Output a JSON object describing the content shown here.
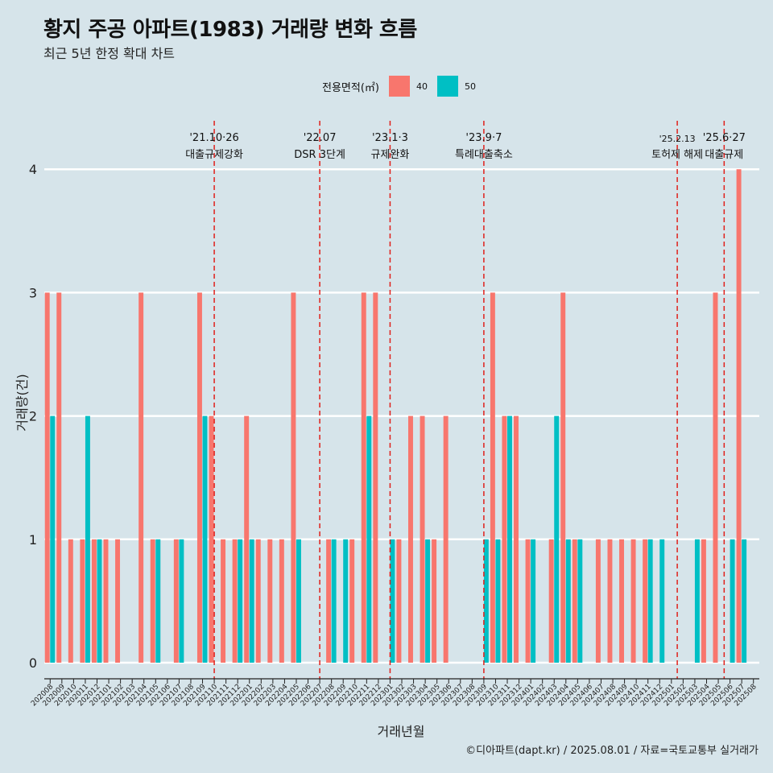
{
  "title": "황지 주공 아파트(1983) 거래량 변화 흐름",
  "subtitle": "최근 5년 한정 확대 차트",
  "caption": "©디아파트(dapt.kr) / 2025.08.01 / 자료=국토교통부 실거래가",
  "colors": {
    "s40": "#f8766d",
    "s50": "#00bfc4",
    "background": "#d6e4ea",
    "grid": "#ffffff",
    "event_line": "#e0201b"
  },
  "chart_data": {
    "type": "bar",
    "xlabel": "거래년월",
    "ylabel": "거래량(건)",
    "ylim": [
      0,
      4
    ],
    "yticks": [
      0,
      1,
      2,
      3,
      4
    ],
    "legend_title": "전용면적(㎡)",
    "legend_position": "top",
    "grid": true,
    "categories": [
      "202008",
      "202009",
      "202010",
      "202011",
      "202012",
      "202101",
      "202102",
      "202103",
      "202104",
      "202105",
      "202106",
      "202107",
      "202108",
      "202109",
      "202110",
      "202111",
      "202112",
      "202201",
      "202202",
      "202203",
      "202204",
      "202205",
      "202206",
      "202207",
      "202208",
      "202209",
      "202210",
      "202211",
      "202212",
      "202301",
      "202302",
      "202303",
      "202304",
      "202305",
      "202306",
      "202307",
      "202308",
      "202309",
      "202310",
      "202311",
      "202312",
      "202401",
      "202402",
      "202403",
      "202404",
      "202405",
      "202406",
      "202407",
      "202408",
      "202409",
      "202410",
      "202411",
      "202412",
      "202501",
      "202502",
      "202503",
      "202504",
      "202505",
      "202506",
      "202507",
      "202508"
    ],
    "series": [
      {
        "name": "40",
        "values": [
          3,
          3,
          1,
          1,
          1,
          1,
          1,
          0,
          3,
          1,
          0,
          1,
          0,
          3,
          2,
          1,
          1,
          2,
          1,
          1,
          1,
          3,
          0,
          0,
          1,
          0,
          1,
          3,
          3,
          0,
          1,
          2,
          2,
          1,
          2,
          0,
          0,
          0,
          3,
          2,
          2,
          1,
          0,
          1,
          3,
          1,
          0,
          1,
          1,
          1,
          1,
          1,
          0,
          0,
          0,
          0,
          1,
          3,
          0,
          4,
          0
        ]
      },
      {
        "name": "50",
        "values": [
          2,
          0,
          0,
          2,
          1,
          0,
          0,
          0,
          0,
          1,
          0,
          1,
          0,
          2,
          0,
          0,
          1,
          1,
          0,
          0,
          0,
          1,
          0,
          0,
          1,
          1,
          0,
          2,
          0,
          1,
          0,
          0,
          1,
          0,
          0,
          0,
          0,
          1,
          1,
          2,
          0,
          1,
          0,
          2,
          1,
          1,
          0,
          0,
          0,
          0,
          0,
          1,
          1,
          0,
          0,
          1,
          0,
          0,
          1,
          1,
          0
        ]
      }
    ],
    "events": [
      {
        "date": "'21.10·26",
        "label": "대출규제강화",
        "pos": 14.5
      },
      {
        "date": "'22.07",
        "label": "DSR 3단계",
        "pos": 23.5
      },
      {
        "date": "'23.1·3",
        "label": "규제완화",
        "pos": 29.5
      },
      {
        "date": "'23.9·7",
        "label": "특례대출축소",
        "pos": 37.5
      },
      {
        "date": "'25.2.13",
        "label": "토허제 해제",
        "pos": 54.0
      },
      {
        "date": "'25.6·27",
        "label": "대출규제",
        "pos": 58.0
      }
    ]
  }
}
